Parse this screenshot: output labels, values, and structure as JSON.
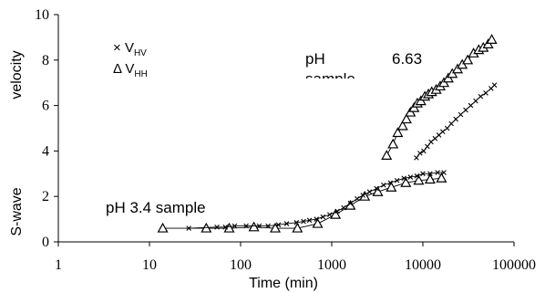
{
  "chart_data": {
    "type": "scatter",
    "title": "",
    "xlabel": "Time (min)",
    "ylabel": "S-wave velocity",
    "ylabel_parts": [
      "S-wave",
      "velocity"
    ],
    "xscale": "log",
    "xlim": [
      1,
      100000
    ],
    "ylim": [
      0,
      10
    ],
    "xticks": [
      1,
      10,
      100,
      1000,
      10000,
      100000
    ],
    "xtick_labels": [
      "1",
      "10",
      "100",
      "1000",
      "10000",
      "100000"
    ],
    "yticks": [
      0,
      2,
      4,
      6,
      8,
      10
    ],
    "ytick_labels": [
      "0",
      "2",
      "4",
      "6",
      "8",
      "10"
    ],
    "grid": false,
    "legend": {
      "placement": "top-left",
      "entries": [
        {
          "symbol": "×",
          "text": "V",
          "subscript": "HV"
        },
        {
          "symbol": "Δ",
          "text": "V",
          "subscript": "HH"
        }
      ]
    },
    "annotations": [
      {
        "text": "pH",
        "data": [
          3400,
          7.9
        ]
      },
      {
        "text": "sample",
        "data": [
          3400,
          7.15
        ],
        "clipped": true
      },
      {
        "text": "6.63",
        "data": [
          14000,
          7.9
        ]
      },
      {
        "text": "pH 3.4 sample",
        "data": [
          9,
          1.45
        ]
      }
    ],
    "series": [
      {
        "name": "pH 3.4 V_HH",
        "marker": "triangle",
        "x": [
          14,
          42,
          75,
          140,
          240,
          420,
          700,
          1100,
          1600,
          2300,
          3200,
          4500,
          6500,
          9000,
          12000,
          16000
        ],
        "y": [
          0.6,
          0.6,
          0.6,
          0.65,
          0.6,
          0.6,
          0.8,
          1.2,
          1.6,
          2.0,
          2.2,
          2.4,
          2.6,
          2.7,
          2.75,
          2.8
        ]
      },
      {
        "name": "pH 3.4 V_HV",
        "marker": "cross",
        "x": [
          27,
          55,
          68,
          86,
          115,
          160,
          200,
          260,
          320,
          410,
          490,
          570,
          680,
          800,
          950,
          1150,
          1350,
          1600,
          1900,
          2200,
          2600,
          3100,
          3700,
          4400,
          5200,
          6200,
          7300,
          8600,
          10000,
          12000,
          14500,
          17000
        ],
        "y": [
          0.6,
          0.65,
          0.65,
          0.7,
          0.7,
          0.7,
          0.7,
          0.75,
          0.8,
          0.85,
          0.9,
          0.95,
          1.0,
          1.1,
          1.2,
          1.35,
          1.5,
          1.7,
          1.9,
          2.05,
          2.2,
          2.35,
          2.5,
          2.6,
          2.7,
          2.8,
          2.85,
          2.9,
          3.0,
          3.0,
          3.05,
          3.05
        ]
      },
      {
        "name": "pH 6.63 V_HH",
        "marker": "triangle",
        "x": [
          4000,
          4700,
          5300,
          6000,
          6600,
          7300,
          8000,
          8700,
          9500,
          10500,
          11500,
          12500,
          14000,
          15500,
          17000,
          19000,
          21000,
          24000,
          27000,
          31000,
          36000,
          41000,
          46000,
          52000,
          57000
        ],
        "y": [
          3.8,
          4.3,
          4.8,
          5.1,
          5.4,
          5.7,
          5.9,
          6.1,
          6.2,
          6.4,
          6.5,
          6.6,
          6.7,
          6.85,
          7.0,
          7.2,
          7.4,
          7.6,
          7.8,
          8.0,
          8.3,
          8.45,
          8.55,
          8.7,
          8.9
        ]
      },
      {
        "name": "pH 6.63 V_HV",
        "marker": "cross",
        "x": [
          8500,
          9300,
          10200,
          11200,
          12300,
          13600,
          15000,
          16500,
          18500,
          20500,
          23000,
          26000,
          29500,
          33500,
          38000,
          43000,
          49000,
          56000,
          61000
        ],
        "y": [
          3.7,
          3.9,
          4.0,
          4.2,
          4.4,
          4.55,
          4.7,
          4.85,
          5.0,
          5.2,
          5.4,
          5.6,
          5.8,
          6.0,
          6.2,
          6.4,
          6.55,
          6.75,
          6.9
        ]
      }
    ]
  }
}
